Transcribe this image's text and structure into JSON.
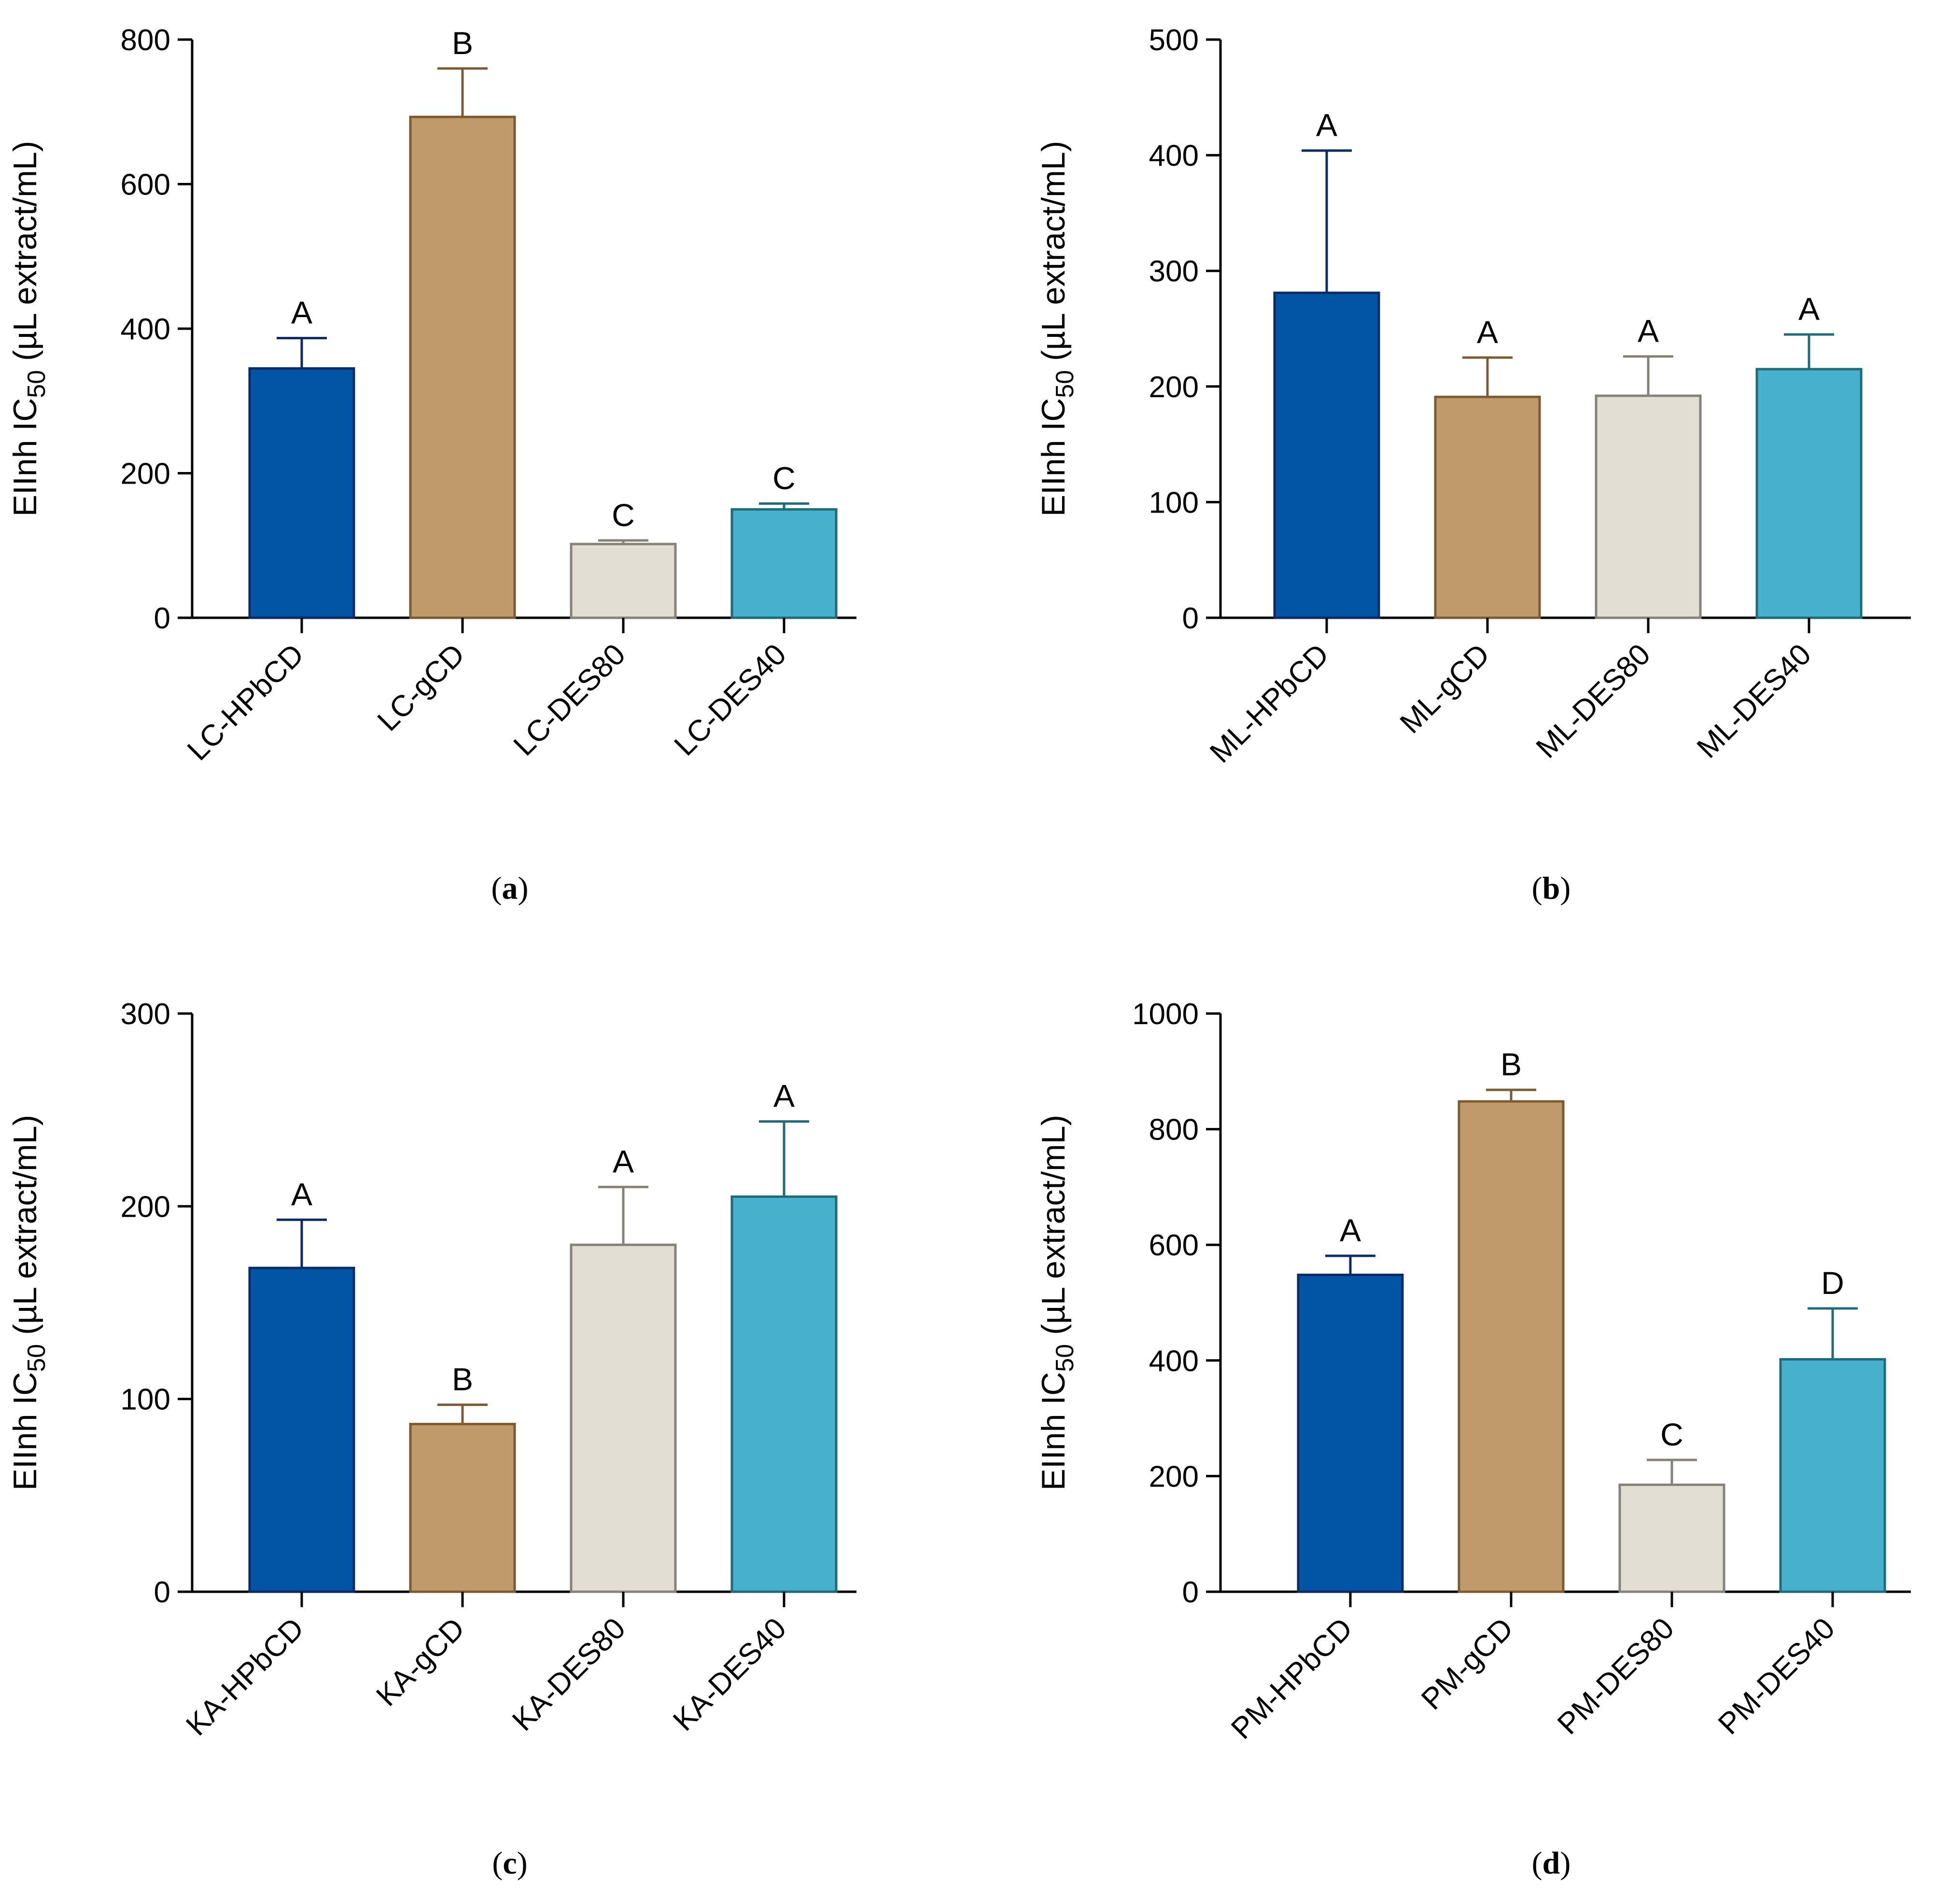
{
  "colors": {
    "HPbCD": {
      "fill": "#0254A4",
      "stroke": "#0B2A66"
    },
    "gCD": {
      "fill": "#C19A6B",
      "stroke": "#7D5B32"
    },
    "DES80": {
      "fill": "#E2DED3",
      "stroke": "#858278"
    },
    "DES40": {
      "fill": "#46B0CD",
      "stroke": "#1F6B7A"
    }
  },
  "chart_data": [
    {
      "type": "bar",
      "panel_label": "a",
      "ylabel": "EIInh IC",
      "ylabel_sub": "50",
      "ylabel_unit": " (µL extract/mL)",
      "ylim": [
        0,
        800
      ],
      "yticks": [
        0,
        200,
        400,
        600,
        800
      ],
      "categories": [
        "LC-HPbCD",
        "LC-gCD",
        "LC-DES80",
        "LC-DES40"
      ],
      "color_keys": [
        "HPbCD",
        "gCD",
        "DES80",
        "DES40"
      ],
      "values": [
        345,
        693,
        102,
        150
      ],
      "errors": [
        42,
        67,
        5,
        8
      ],
      "letters": [
        "A",
        "B",
        "C",
        "C"
      ]
    },
    {
      "type": "bar",
      "panel_label": "b",
      "ylabel": "EIInh IC",
      "ylabel_sub": "50",
      "ylabel_unit": " (µL extract/mL)",
      "ylim": [
        0,
        500
      ],
      "yticks": [
        0,
        100,
        200,
        300,
        400,
        500
      ],
      "categories": [
        "ML-HPbCD",
        "ML-gCD",
        "ML-DES80",
        "ML-DES40"
      ],
      "color_keys": [
        "HPbCD",
        "gCD",
        "DES80",
        "DES40"
      ],
      "values": [
        281,
        191,
        192,
        215
      ],
      "errors": [
        123,
        34,
        34,
        30
      ],
      "letters": [
        "A",
        "A",
        "A",
        "A"
      ]
    },
    {
      "type": "bar",
      "panel_label": "c",
      "ylabel": "EIInh IC",
      "ylabel_sub": "50",
      "ylabel_unit": " (µL extract/mL)",
      "ylim": [
        0,
        300
      ],
      "yticks": [
        0,
        100,
        200,
        300
      ],
      "categories": [
        "KA-HPbCD",
        "KA-gCD",
        "KA-DES80",
        "KA-DES40"
      ],
      "color_keys": [
        "HPbCD",
        "gCD",
        "DES80",
        "DES40"
      ],
      "values": [
        168,
        87,
        180,
        205
      ],
      "errors": [
        25,
        10,
        30,
        39
      ],
      "letters": [
        "A",
        "B",
        "A",
        "A"
      ]
    },
    {
      "type": "bar",
      "panel_label": "d",
      "ylabel": "EIInh IC",
      "ylabel_sub": "50",
      "ylabel_unit": " (µL extract/mL)",
      "ylim": [
        0,
        1000
      ],
      "yticks": [
        0,
        200,
        400,
        600,
        800,
        1000
      ],
      "categories": [
        "PM-HPbCD",
        "PM-gCD",
        "PM-DES80",
        "PM-DES40"
      ],
      "color_keys": [
        "HPbCD",
        "gCD",
        "DES80",
        "DES40"
      ],
      "values": [
        548,
        848,
        185,
        402
      ],
      "errors": [
        33,
        20,
        43,
        88
      ],
      "letters": [
        "A",
        "B",
        "C",
        "D"
      ]
    }
  ]
}
